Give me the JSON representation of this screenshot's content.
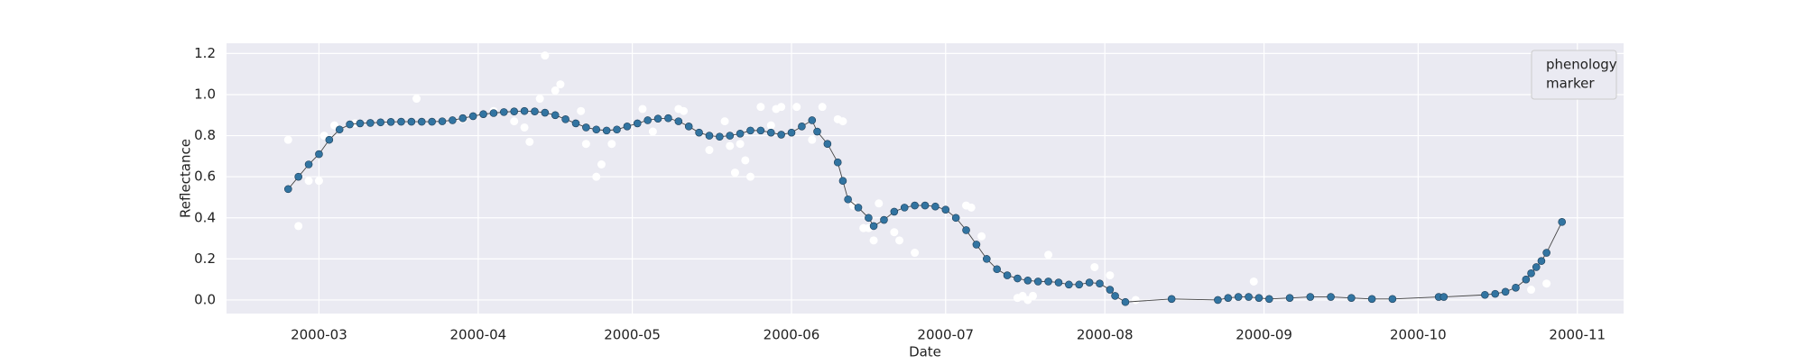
{
  "chart_data": {
    "type": "line",
    "xlabel": "Date",
    "ylabel": "Reflectance",
    "xlim": [
      43,
      315
    ],
    "xticks": [
      {
        "value": 61,
        "label": "2000-03"
      },
      {
        "value": 92,
        "label": "2000-04"
      },
      {
        "value": 122,
        "label": "2000-05"
      },
      {
        "value": 153,
        "label": "2000-06"
      },
      {
        "value": 183,
        "label": "2000-07"
      },
      {
        "value": 214,
        "label": "2000-08"
      },
      {
        "value": 245,
        "label": "2000-09"
      },
      {
        "value": 275,
        "label": "2000-10"
      },
      {
        "value": 306,
        "label": "2000-11"
      }
    ],
    "ylim": [
      -0.066,
      1.25
    ],
    "yticks": [
      {
        "value": 0,
        "label": "0.0"
      },
      0.2,
      0.4,
      0.6,
      0.8,
      {
        "value": 1,
        "label": "1.0"
      },
      1.2
    ],
    "grid": true,
    "legend": "upper right",
    "series": [
      {
        "name": "phenology",
        "type": "line",
        "color": "#3274a1",
        "x": [
          55,
          57,
          59,
          61,
          63,
          65,
          67,
          69,
          71,
          73,
          75,
          77,
          79,
          81,
          83,
          85,
          87,
          89,
          91,
          93,
          95,
          97,
          99,
          101,
          103,
          105,
          107,
          109,
          111,
          113,
          115,
          117,
          119,
          121,
          123,
          125,
          127,
          129,
          131,
          133,
          135,
          137,
          139,
          141,
          143,
          145,
          147,
          149,
          151,
          153,
          155,
          157,
          158,
          160,
          162,
          163,
          164,
          166,
          168,
          169,
          171,
          173,
          175,
          177,
          179,
          181,
          183,
          185,
          187,
          189,
          191,
          193,
          195,
          197,
          199,
          201,
          203,
          205,
          207,
          209,
          211,
          213,
          215,
          216,
          218,
          227,
          236,
          238,
          240,
          242,
          244,
          246,
          250,
          254,
          258,
          262,
          266,
          270,
          279,
          280,
          288,
          290,
          292,
          294,
          296,
          297,
          298,
          299,
          300,
          303
        ],
        "values": [
          0.54,
          0.6,
          0.66,
          0.71,
          0.78,
          0.83,
          0.855,
          0.86,
          0.862,
          0.865,
          0.867,
          0.868,
          0.868,
          0.868,
          0.868,
          0.87,
          0.875,
          0.885,
          0.895,
          0.905,
          0.91,
          0.915,
          0.918,
          0.92,
          0.918,
          0.912,
          0.9,
          0.88,
          0.86,
          0.84,
          0.83,
          0.825,
          0.83,
          0.845,
          0.86,
          0.875,
          0.883,
          0.885,
          0.87,
          0.845,
          0.815,
          0.8,
          0.795,
          0.8,
          0.81,
          0.825,
          0.825,
          0.815,
          0.805,
          0.815,
          0.845,
          0.875,
          0.82,
          0.76,
          0.67,
          0.58,
          0.49,
          0.45,
          0.4,
          0.36,
          0.39,
          0.43,
          0.45,
          0.46,
          0.46,
          0.455,
          0.44,
          0.4,
          0.34,
          0.27,
          0.2,
          0.15,
          0.12,
          0.105,
          0.095,
          0.09,
          0.09,
          0.085,
          0.075,
          0.075,
          0.085,
          0.08,
          0.05,
          0.02,
          -0.01,
          0.005,
          0,
          0.01,
          0.015,
          0.015,
          0.01,
          0.005,
          0.01,
          0.015,
          0.015,
          0.01,
          0.005,
          0.005,
          0.015,
          0.015,
          0.025,
          0.03,
          0.04,
          0.06,
          0.1,
          0.13,
          0.16,
          0.19,
          0.23,
          0.38
        ]
      },
      {
        "name": "marker",
        "type": "scatter",
        "color": "#ffffff",
        "x": [
          55,
          57,
          59,
          61,
          62,
          64,
          68,
          80,
          89,
          95,
          99,
          101,
          102,
          104,
          105,
          107,
          108,
          112,
          113,
          115,
          116,
          118,
          124,
          126,
          131,
          132,
          137,
          140,
          141,
          142,
          143,
          144,
          145,
          147,
          149,
          150,
          151,
          154,
          157,
          159,
          162,
          163,
          165,
          167,
          168,
          169,
          170,
          173,
          174,
          177,
          187,
          188,
          190,
          191,
          197,
          198,
          199,
          200,
          203,
          212,
          215,
          220,
          243,
          297,
          300
        ],
        "values": [
          0.78,
          0.36,
          0.58,
          0.58,
          0.8,
          0.85,
          0.86,
          0.98,
          0.88,
          0.92,
          0.87,
          0.84,
          0.77,
          0.98,
          1.19,
          1.02,
          1.05,
          0.92,
          0.76,
          0.6,
          0.66,
          0.76,
          0.93,
          0.82,
          0.93,
          0.92,
          0.73,
          0.87,
          0.75,
          0.62,
          0.76,
          0.68,
          0.6,
          0.94,
          0.85,
          0.93,
          0.94,
          0.94,
          0.78,
          0.94,
          0.88,
          0.87,
          0.46,
          0.35,
          0.35,
          0.29,
          0.47,
          0.33,
          0.29,
          0.23,
          0.46,
          0.45,
          0.31,
          0.2,
          0.01,
          0.02,
          0,
          0.02,
          0.22,
          0.16,
          0.12,
          0,
          0.09,
          0.05,
          0.08
        ]
      }
    ]
  }
}
